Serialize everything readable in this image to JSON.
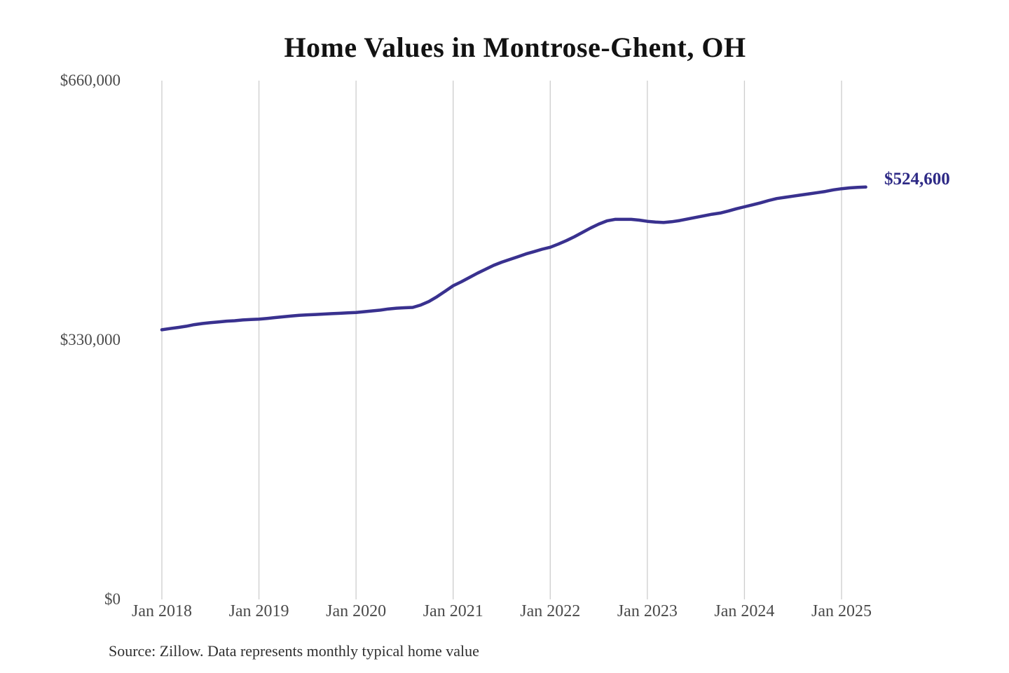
{
  "page": {
    "background_color": "#ffffff",
    "source_note": "Source: Zillow. Data represents monthly typical home value"
  },
  "chart_data": {
    "type": "line",
    "title": "Home Values in Montrose-Ghent, OH",
    "xlabel": "",
    "ylabel": "",
    "ylim": [
      0,
      660000
    ],
    "grid": "vertical gridlines at each January tick",
    "legend": "none",
    "line_color": "#39318f",
    "grid_color": "#cdcdcd",
    "tick_color": "#4a4a4a",
    "title_color": "#121212",
    "source_color": "#2f2f2f",
    "end_label": {
      "text": "$524,600",
      "value": 524600,
      "color": "#2e2a86"
    },
    "y_ticks": [
      {
        "label": "$0",
        "value": 0
      },
      {
        "label": "$330,000",
        "value": 330000
      },
      {
        "label": "$660,000",
        "value": 660000
      }
    ],
    "x_ticks": [
      {
        "label": "Jan 2018",
        "month_index": 0
      },
      {
        "label": "Jan 2019",
        "month_index": 12
      },
      {
        "label": "Jan 2020",
        "month_index": 24
      },
      {
        "label": "Jan 2021",
        "month_index": 36
      },
      {
        "label": "Jan 2022",
        "month_index": 48
      },
      {
        "label": "Jan 2023",
        "month_index": 60
      },
      {
        "label": "Jan 2024",
        "month_index": 72
      },
      {
        "label": "Jan 2025",
        "month_index": 84
      }
    ],
    "x": [
      "2018-01",
      "2018-02",
      "2018-03",
      "2018-04",
      "2018-05",
      "2018-06",
      "2018-07",
      "2018-08",
      "2018-09",
      "2018-10",
      "2018-11",
      "2018-12",
      "2019-01",
      "2019-02",
      "2019-03",
      "2019-04",
      "2019-05",
      "2019-06",
      "2019-07",
      "2019-08",
      "2019-09",
      "2019-10",
      "2019-11",
      "2019-12",
      "2020-01",
      "2020-02",
      "2020-03",
      "2020-04",
      "2020-05",
      "2020-06",
      "2020-07",
      "2020-08",
      "2020-09",
      "2020-10",
      "2020-11",
      "2020-12",
      "2021-01",
      "2021-02",
      "2021-03",
      "2021-04",
      "2021-05",
      "2021-06",
      "2021-07",
      "2021-08",
      "2021-09",
      "2021-10",
      "2021-11",
      "2021-12",
      "2022-01",
      "2022-02",
      "2022-03",
      "2022-04",
      "2022-05",
      "2022-06",
      "2022-07",
      "2022-08",
      "2022-09",
      "2022-10",
      "2022-11",
      "2022-12",
      "2023-01",
      "2023-02",
      "2023-03",
      "2023-04",
      "2023-05",
      "2023-06",
      "2023-07",
      "2023-08",
      "2023-09",
      "2023-10",
      "2023-11",
      "2023-12",
      "2024-01",
      "2024-02",
      "2024-03",
      "2024-04",
      "2024-05",
      "2024-06",
      "2024-07",
      "2024-08",
      "2024-09",
      "2024-10",
      "2024-11",
      "2024-12",
      "2025-01",
      "2025-02",
      "2025-03",
      "2025-04"
    ],
    "series": [
      {
        "name": "Typical home value",
        "values": [
          343000,
          344500,
          346000,
          347500,
          349500,
          351000,
          352000,
          353000,
          354000,
          354500,
          355500,
          356000,
          356500,
          357500,
          358500,
          359500,
          360500,
          361500,
          362000,
          362500,
          363000,
          363500,
          364000,
          364500,
          365000,
          366000,
          367000,
          368000,
          369500,
          370500,
          371000,
          371500,
          374500,
          379000,
          385000,
          392000,
          399000,
          404000,
          409500,
          415000,
          420000,
          425000,
          429000,
          432500,
          436000,
          439500,
          442500,
          445500,
          448000,
          452000,
          456500,
          461500,
          467000,
          472500,
          477500,
          481500,
          483500,
          483500,
          483500,
          482500,
          481000,
          480000,
          479500,
          480500,
          482000,
          484000,
          486000,
          488000,
          490000,
          491500,
          494000,
          497000,
          499500,
          502000,
          504500,
          507500,
          510000,
          511500,
          513000,
          514500,
          516000,
          517500,
          519000,
          521000,
          522500,
          523500,
          524200,
          524600
        ]
      }
    ]
  }
}
